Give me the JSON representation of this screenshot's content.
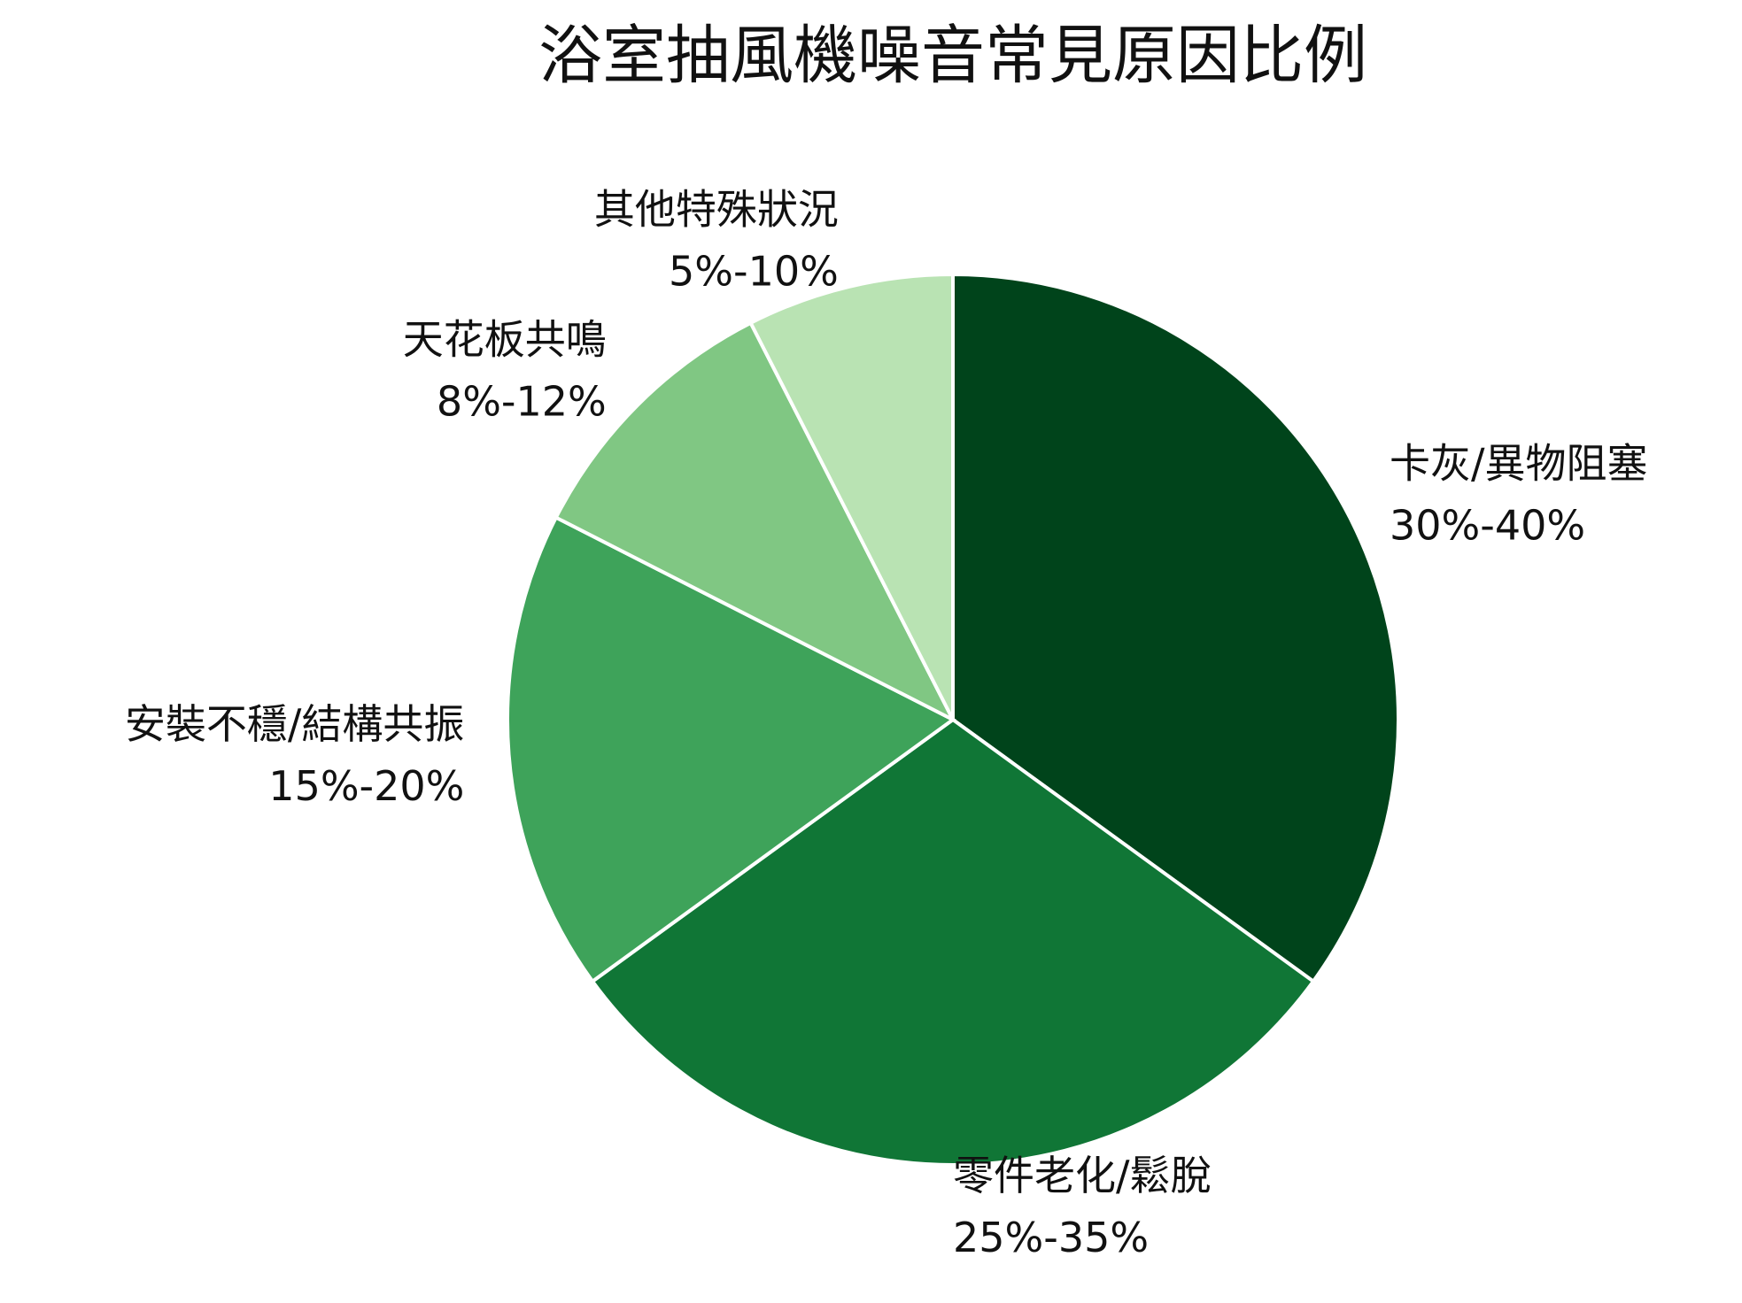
{
  "chart_data": {
    "type": "pie",
    "title": "浴室抽風機噪音常見原因比例",
    "categories": [
      "卡灰/異物阻塞",
      "零件老化/鬆脫",
      "安裝不穩/結構共振",
      "天花板共鳴",
      "其他特殊狀況"
    ],
    "values": [
      35,
      30,
      17.5,
      10,
      7.5
    ],
    "value_labels": [
      "30%-40%",
      "25%-35%",
      "15%-20%",
      "8%-12%",
      "5%-10%"
    ],
    "colors": [
      "#00441b",
      "#107636",
      "#3ea35a",
      "#80c783",
      "#b9e3b3"
    ]
  }
}
